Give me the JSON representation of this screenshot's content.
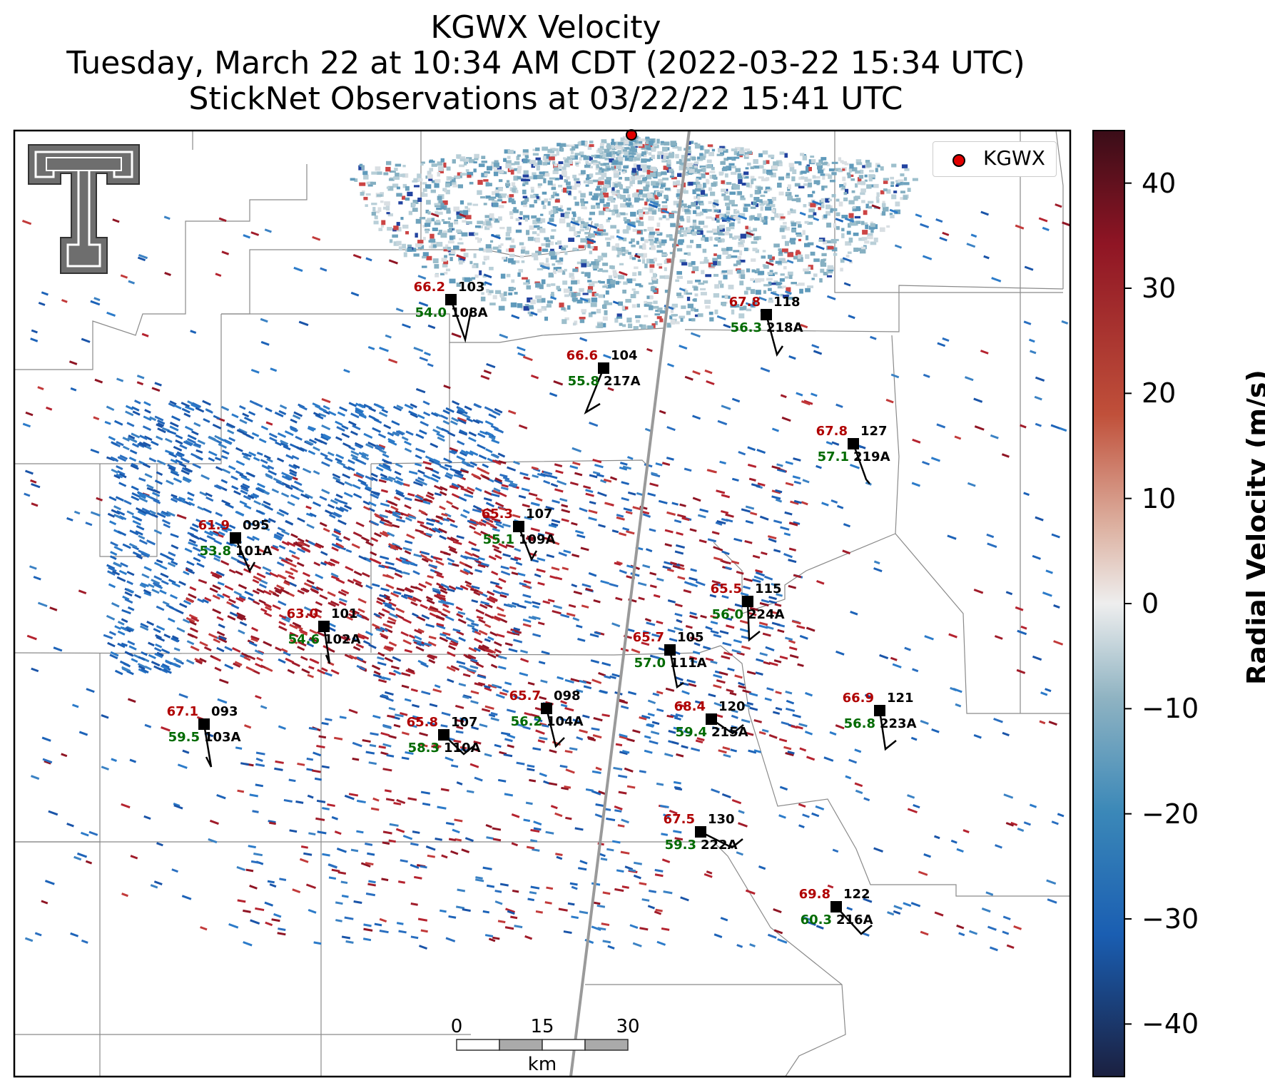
{
  "title": {
    "line1": "KGWX Velocity",
    "line2": "Tuesday, March 22 at 10:34 AM CDT (2022-03-22 15:34 UTC)",
    "line3": "StickNet Observations at 03/22/22 15:41 UTC"
  },
  "legend": {
    "label": "KGWX",
    "color": "#e00000"
  },
  "colorbar": {
    "title": "Radial Velocity (m/s)",
    "range": [
      -45,
      45
    ],
    "ticks": [
      "40",
      "30",
      "20",
      "10",
      "0",
      "−10",
      "−20",
      "−30",
      "−40"
    ],
    "colors": [
      "#3a0d18",
      "#8f1524",
      "#c0503a",
      "#ddb2a2",
      "#eeeeee",
      "#8fb3c2",
      "#3b88b8",
      "#1a5eb2",
      "#1b2040"
    ]
  },
  "scale_bar": {
    "labels": [
      "0",
      "15",
      "30"
    ],
    "unit": "km"
  },
  "logo": {
    "name": "Texas Tech Double T"
  },
  "stations": [
    {
      "id": "108A",
      "temp": "66.2",
      "dew": "54.0",
      "pressure": "103"
    },
    {
      "id": "217A",
      "temp": "66.6",
      "dew": "55.8",
      "pressure": "104"
    },
    {
      "id": "218A",
      "temp": "67.8",
      "dew": "56.3",
      "pressure": "118"
    },
    {
      "id": "219A",
      "temp": "67.8",
      "dew": "57.1",
      "pressure": "127"
    },
    {
      "id": "109A",
      "temp": "65.3",
      "dew": "55.1",
      "pressure": "107"
    },
    {
      "id": "101A",
      "temp": "61.9",
      "dew": "53.8",
      "pressure": "095"
    },
    {
      "id": "224A",
      "temp": "65.5",
      "dew": "56.0",
      "pressure": "115"
    },
    {
      "id": "102A",
      "temp": "63.0",
      "dew": "54.6",
      "pressure": "101"
    },
    {
      "id": "111A",
      "temp": "65.7",
      "dew": "57.0",
      "pressure": "105"
    },
    {
      "id": "104A",
      "temp": "65.7",
      "dew": "56.2",
      "pressure": "098"
    },
    {
      "id": "103A",
      "temp": "67.1",
      "dew": "59.5",
      "pressure": "093"
    },
    {
      "id": "110A",
      "temp": "65.8",
      "dew": "58.3",
      "pressure": "107"
    },
    {
      "id": "215A",
      "temp": "68.4",
      "dew": "59.4",
      "pressure": "120"
    },
    {
      "id": "223A",
      "temp": "66.9",
      "dew": "56.8",
      "pressure": "121"
    },
    {
      "id": "222A",
      "temp": "67.5",
      "dew": "59.3",
      "pressure": "130"
    },
    {
      "id": "216A",
      "temp": "69.8",
      "dew": "60.3",
      "pressure": "122"
    }
  ]
}
